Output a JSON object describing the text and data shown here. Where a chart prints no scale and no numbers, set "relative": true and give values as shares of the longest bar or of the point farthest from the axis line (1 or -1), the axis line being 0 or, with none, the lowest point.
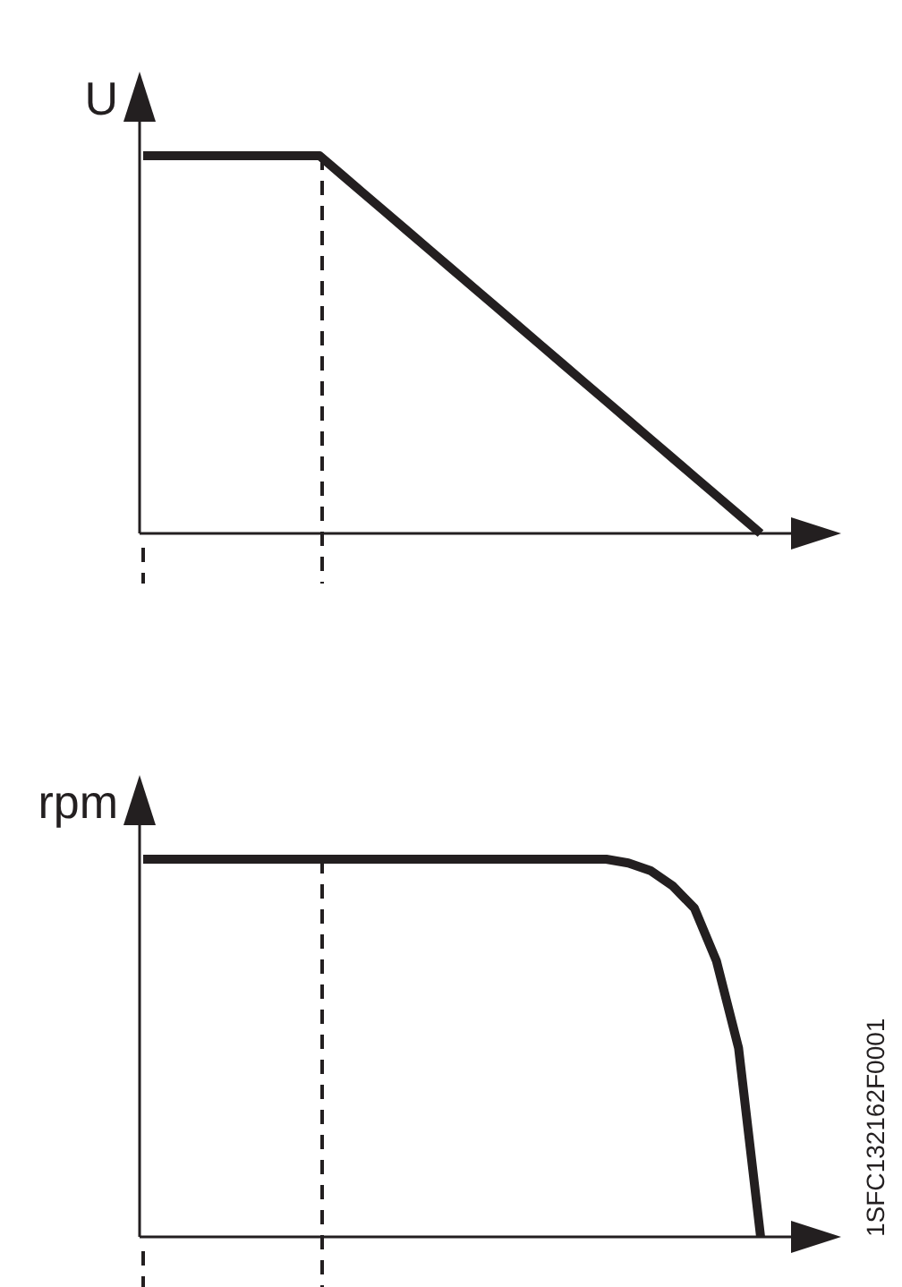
{
  "chart_data": [
    {
      "type": "line",
      "relative": true,
      "ylabel": "U",
      "categories": [
        null,
        null,
        null,
        null,
        null,
        null,
        null,
        null,
        null,
        null,
        null,
        null,
        null,
        null,
        null,
        null,
        null,
        null,
        null,
        null,
        null,
        null,
        null,
        null,
        null,
        null,
        null,
        null,
        null
      ],
      "series": [
        {
          "color": "#231f20",
          "values": [
            1,
            1,
            1,
            1,
            1,
            1,
            1,
            1,
            1,
            0.95,
            0.9,
            0.85,
            0.8,
            0.75,
            0.7,
            0.65,
            0.6,
            0.55,
            0.5,
            0.45,
            0.4,
            0.35,
            0.3,
            0.25,
            0.2,
            0.15,
            0.1,
            0.05,
            0
          ]
        }
      ]
    },
    {
      "type": "line",
      "relative": true,
      "ylabel": "rpm",
      "categories": [
        null,
        null,
        null,
        null,
        null,
        null,
        null,
        null,
        null,
        null,
        null,
        null,
        null,
        null,
        null,
        null,
        null,
        null,
        null,
        null,
        null,
        null,
        null,
        null,
        null,
        null,
        null,
        null,
        null
      ],
      "series": [
        {
          "color": "#231f20",
          "values": [
            1,
            1,
            1,
            1,
            1,
            1,
            1,
            1,
            1,
            1,
            1,
            1,
            1,
            1,
            1,
            1,
            1,
            1,
            1,
            1,
            1,
            1,
            0.99,
            0.97,
            0.93,
            0.87,
            0.73,
            0.5,
            0
          ]
        }
      ],
      "annotations": [
        "1SFC132162F0001"
      ]
    }
  ]
}
